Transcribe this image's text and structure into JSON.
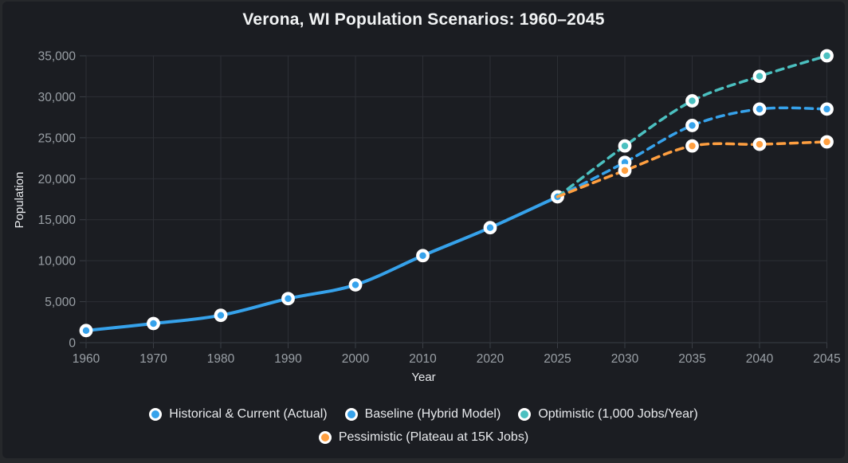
{
  "colors": {
    "background": "#26282b",
    "card": "#1b1d22",
    "grid": "#2c2f35",
    "zero_line": "#3a3e45",
    "tick_text": "#9aa0a6",
    "axis_title_text": "#e8eaed",
    "title_text": "#f1f3f4",
    "marker_ring": "#ffffff",
    "blue": "#36a2eb",
    "teal": "#4bc0c0",
    "orange": "#ff9f40"
  },
  "chart_data": {
    "type": "line",
    "title": "Verona, WI Population Scenarios: 1960–2045",
    "xlabel": "Year",
    "ylabel": "Population",
    "categories": [
      "1960",
      "1970",
      "1980",
      "1990",
      "2000",
      "2010",
      "2020",
      "2025",
      "2030",
      "2035",
      "2040",
      "2045"
    ],
    "ylim": [
      0,
      35000
    ],
    "y_step": 5000,
    "y_tick_labels": [
      "0",
      "5,000",
      "10,000",
      "15,000",
      "20,000",
      "25,000",
      "30,000",
      "35,000"
    ],
    "grid": true,
    "legend_position": "bottom",
    "series": [
      {
        "name": "Historical & Current (Actual)",
        "color": "#36a2eb",
        "style": "solid",
        "values": [
          1475,
          2334,
          3336,
          5374,
          7052,
          10619,
          14030,
          17800,
          null,
          null,
          null,
          null
        ]
      },
      {
        "name": "Baseline (Hybrid Model)",
        "color": "#36a2eb",
        "style": "dashed",
        "values": [
          null,
          null,
          null,
          null,
          null,
          null,
          null,
          17800,
          22000,
          26500,
          28500,
          28500
        ]
      },
      {
        "name": "Optimistic (1,000 Jobs/Year)",
        "color": "#4bc0c0",
        "style": "dashed",
        "values": [
          null,
          null,
          null,
          null,
          null,
          null,
          null,
          17800,
          24000,
          29500,
          32500,
          35000
        ]
      },
      {
        "name": "Pessimistic (Plateau at 15K Jobs)",
        "color": "#ff9f40",
        "style": "dashed",
        "values": [
          null,
          null,
          null,
          null,
          null,
          null,
          null,
          17800,
          21000,
          24000,
          24200,
          24500
        ]
      }
    ]
  }
}
